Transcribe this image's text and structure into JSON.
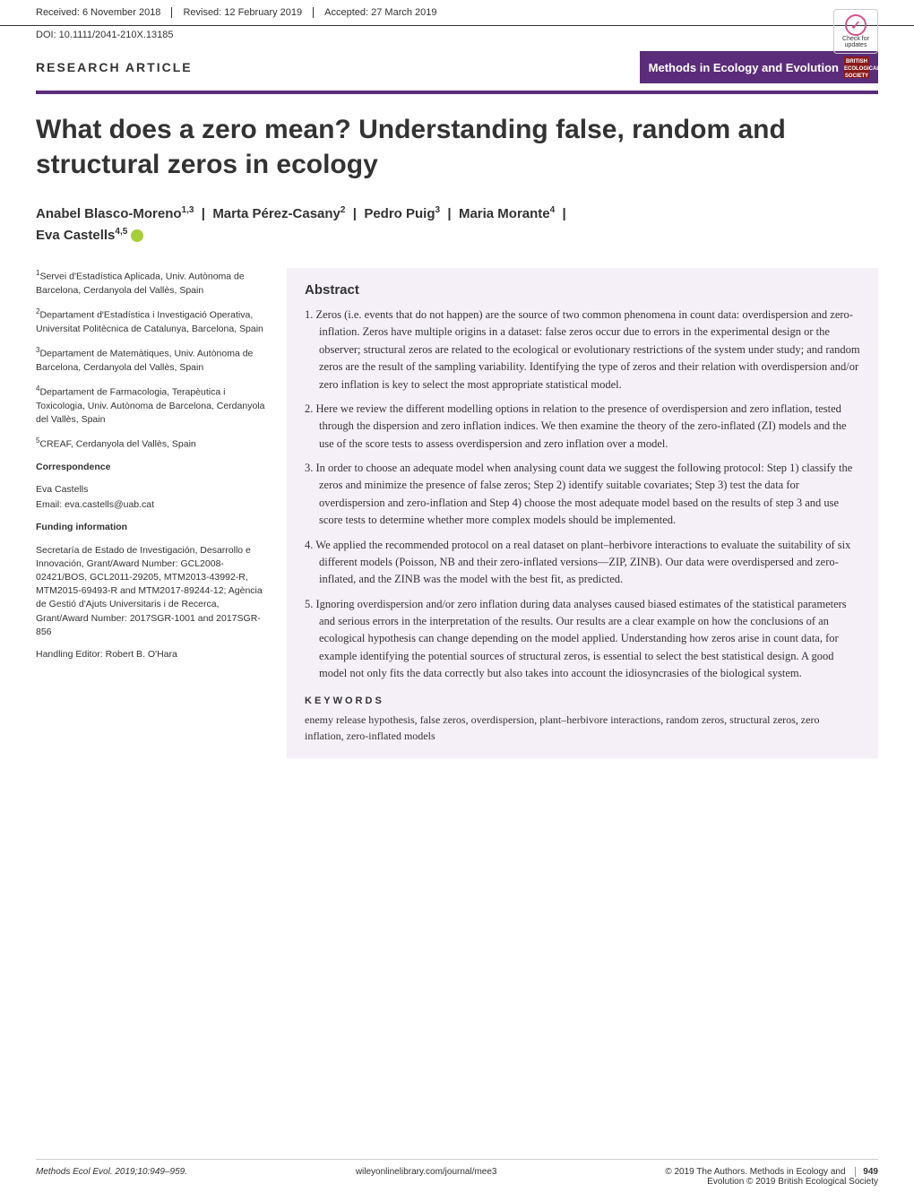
{
  "header": {
    "received_label": "Received:",
    "received_date": "6 November 2018",
    "revised_label": "Revised:",
    "revised_date": "12 February 2019",
    "accepted_label": "Accepted:",
    "accepted_date": "27 March 2019"
  },
  "doi": "DOI: 10.1111/2041-210X.13185",
  "article_type": "RESEARCH ARTICLE",
  "journal_name": "Methods in Ecology and Evolution",
  "check_updates": "Check for updates",
  "title": "What does a zero mean? Understanding false, random and structural zeros in ecology",
  "authors_line1": "Anabel Blasco-Moreno",
  "authors_sup1": "1,3",
  "authors_line2": "Marta Pérez-Casany",
  "authors_sup2": "2",
  "authors_line3": "Pedro Puig",
  "authors_sup3": "3",
  "authors_line4": "Maria Morante",
  "authors_sup4": "4",
  "authors_line5": "Eva Castells",
  "authors_sup5": "4,5",
  "affiliations": [
    {
      "sup": "1",
      "text": "Servei d'Estadística Aplicada, Univ. Autònoma de Barcelona, Cerdanyola del Vallès, Spain"
    },
    {
      "sup": "2",
      "text": "Departament d'Estadística i Investigació Operativa, Universitat Politècnica de Catalunya, Barcelona, Spain"
    },
    {
      "sup": "3",
      "text": "Departament de Matemàtiques, Univ. Autònoma de Barcelona, Cerdanyola del Vallès, Spain"
    },
    {
      "sup": "4",
      "text": "Departament de Farmacologia, Terapèutica i Toxicologia, Univ. Autònoma de Barcelona, Cerdanyola del Vallès, Spain"
    },
    {
      "sup": "5",
      "text": "CREAF, Cerdanyola del Vallès, Spain"
    }
  ],
  "correspondence_head": "Correspondence",
  "correspondence_name": "Eva Castells",
  "correspondence_email": "Email: eva.castells@uab.cat",
  "funding_head": "Funding information",
  "funding_text": "Secretaría de Estado de Investigación, Desarrollo e Innovación, Grant/Award Number: GCL2008-02421/BOS, GCL2011-29205, MTM2013-43992-R, MTM2015-69493-R and MTM2017-89244-12; Agència de Gestió d'Ajuts Universitaris i de Recerca, Grant/Award Number: 2017SGR-1001 and 2017SGR-856",
  "editor_line": "Handling Editor: Robert B. O'Hara",
  "abstract_head": "Abstract",
  "abstract_items": [
    "1. Zeros (i.e. events that do not happen) are the source of two common phenomena in count data: overdispersion and zero-inflation. Zeros have multiple origins in a dataset: false zeros occur due to errors in the experimental design or the observer; structural zeros are related to the ecological or evolutionary restrictions of the system under study; and random zeros are the result of the sampling variability. Identifying the type of zeros and their relation with overdispersion and/or zero inflation is key to select the most appropriate statistical model.",
    "2. Here we review the different modelling options in relation to the presence of overdispersion and zero inflation, tested through the dispersion and zero inflation indices. We then examine the theory of the zero-inflated (ZI) models and the use of the score tests to assess overdispersion and zero inflation over a model.",
    "3. In order to choose an adequate model when analysing count data we suggest the following protocol: Step 1) classify the zeros and minimize the presence of false zeros; Step 2) identify suitable covariates; Step 3) test the data for overdispersion and zero-inflation and Step 4) choose the most adequate model based on the results of step 3 and use score tests to determine whether more complex models should be implemented.",
    "4. We applied the recommended protocol on a real dataset on plant–herbivore interactions to evaluate the suitability of six different models (Poisson, NB and their zero-inflated versions—ZIP, ZINB). Our data were overdispersed and zero-inflated, and the ZINB was the model with the best fit, as predicted.",
    "5. Ignoring overdispersion and/or zero inflation during data analyses caused biased estimates of the statistical parameters and serious errors in the interpretation of the results. Our results are a clear example on how the conclusions of an ecological hypothesis can change depending on the model applied. Understanding how zeros arise in count data, for example identifying the potential sources of structural zeros, is essential to select the best statistical design. A good model not only fits the data correctly but also takes into account the idiosyncrasies of the biological system."
  ],
  "keywords_head": "KEYWORDS",
  "keywords_text": "enemy release hypothesis, false zeros, overdispersion, plant–herbivore interactions, random zeros, structural zeros, zero inflation, zero-inflated models",
  "footer": {
    "left": "Methods Ecol Evol. 2019;10:949–959.",
    "center": "wileyonlinelibrary.com/journal/mee3",
    "copyright1": "© 2019 The Authors. Methods in Ecology and",
    "copyright2": "Evolution © 2019 British Ecological Society",
    "page": "949"
  },
  "colors": {
    "journal_badge_bg": "#5b2c7a",
    "society_logo_bg": "#8b1a1a",
    "abstract_bg": "#f5f0f7",
    "orcid_bg": "#a6ce39",
    "check_pink": "#d4548c",
    "text": "#333333"
  }
}
